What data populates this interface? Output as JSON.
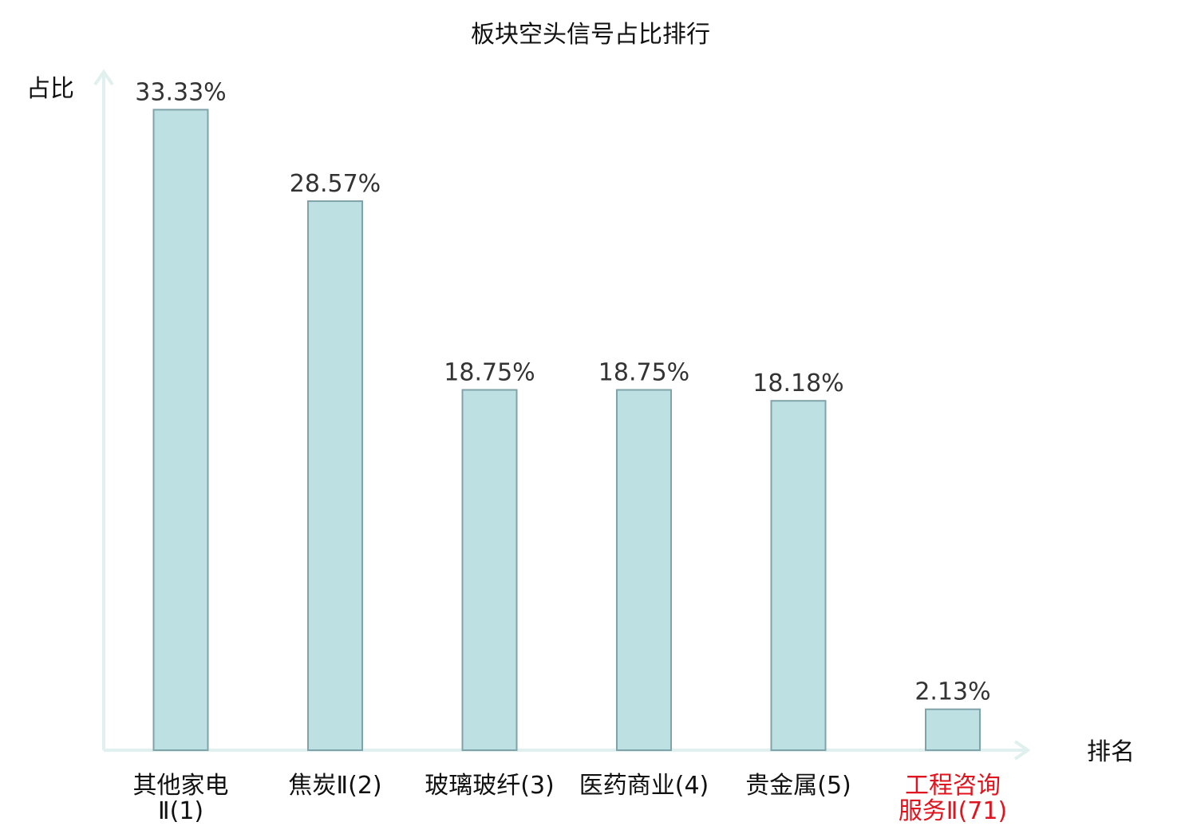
{
  "chart_data": {
    "type": "bar",
    "title": "板块空头信号占比排行",
    "ylabel": "占比",
    "xlabel": "排名",
    "ylim": [
      0,
      35.3
    ],
    "grid": false,
    "categories": [
      [
        "其他家电",
        "Ⅱ(1)"
      ],
      [
        "焦炭Ⅱ(2)"
      ],
      [
        "玻璃玻纤(3)"
      ],
      [
        "医药商业(4)"
      ],
      [
        "贵金属(5)"
      ],
      [
        "工程咨询",
        "服务Ⅱ(71)"
      ]
    ],
    "values": [
      33.33,
      28.57,
      18.75,
      18.75,
      18.18,
      2.13
    ],
    "value_labels": [
      "33.33%",
      "28.57%",
      "18.75%",
      "18.75%",
      "18.18%",
      "2.13%"
    ],
    "highlight_index": 5
  },
  "colors": {
    "bar_fill": "#bde0e3",
    "bar_stroke": "#7fa3a8",
    "axis": "#dff0ee",
    "highlight_text": "#e0141e",
    "text": "#111111"
  }
}
